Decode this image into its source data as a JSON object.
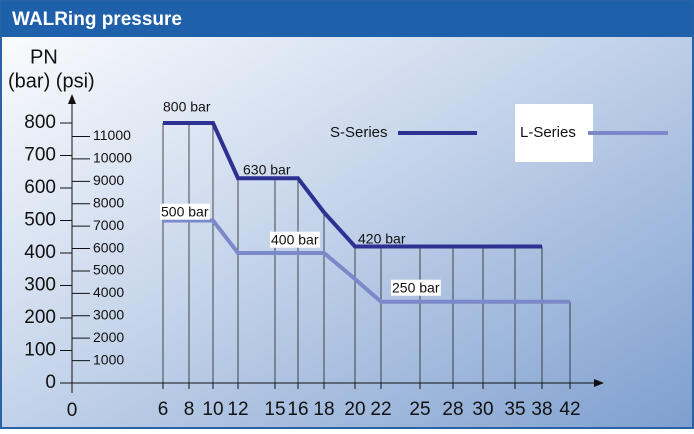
{
  "chart_data": {
    "type": "line",
    "title": "WALRing pressure",
    "y_label": "PN",
    "y_units_label": "(bar) (psi)",
    "origin_label": "0",
    "categories": [
      "6",
      "8",
      "10",
      "12",
      "15",
      "16",
      "18",
      "20",
      "22",
      "25",
      "28",
      "30",
      "35",
      "38",
      "42"
    ],
    "series": [
      {
        "name": "S-Series",
        "color": "#2e3192",
        "values": [
          800,
          800,
          800,
          630,
          630,
          630,
          525,
          420,
          420,
          420,
          420,
          420,
          420,
          420,
          null
        ]
      },
      {
        "name": "L-Series",
        "color": "#7b88c9",
        "values": [
          500,
          500,
          500,
          400,
          400,
          400,
          400,
          320,
          250,
          250,
          250,
          250,
          250,
          250,
          250
        ]
      }
    ],
    "ylim": [
      0,
      800
    ],
    "yticks": [
      0,
      100,
      200,
      300,
      400,
      500,
      600,
      700,
      800
    ],
    "y2lim": [
      0,
      11603
    ],
    "y2ticks": [
      1000,
      2000,
      3000,
      4000,
      5000,
      6000,
      7000,
      8000,
      9000,
      10000,
      11000
    ],
    "annotations": [
      "800 bar",
      "630 bar",
      "420 bar",
      "500 bar",
      "400 bar",
      "250 bar"
    ]
  }
}
